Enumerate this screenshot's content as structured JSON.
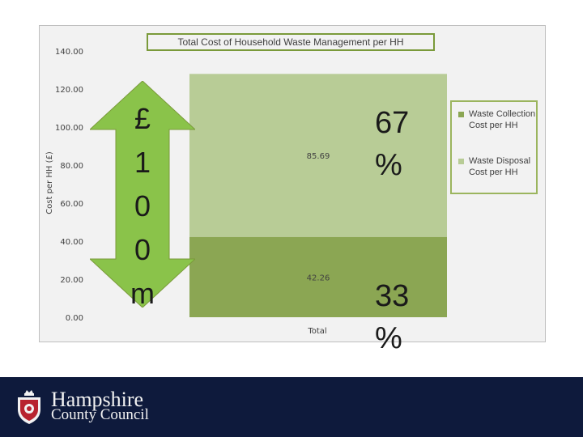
{
  "chart_data": {
    "type": "bar",
    "stacked": true,
    "title": "Total Cost of Household Waste Management per HH",
    "ylabel": "Cost per HH (£)",
    "xlabel": "",
    "categories": [
      "Total"
    ],
    "ylim": [
      0,
      140
    ],
    "yticks": [
      "0.00",
      "20.00",
      "40.00",
      "60.00",
      "80.00",
      "100.00",
      "120.00",
      "140.00"
    ],
    "series": [
      {
        "name": "Waste Collection Cost per HH",
        "values": [
          42.26
        ],
        "label": "42.26",
        "color": "#8ba653"
      },
      {
        "name": "Waste Disposal Cost per HH",
        "values": [
          85.69
        ],
        "label": "85.69",
        "color": "#b8cc96"
      }
    ],
    "legend_position": "right",
    "grid": false
  },
  "annotations": {
    "arrow_chars": [
      "£",
      "1",
      "0",
      "0",
      "m"
    ],
    "arrow_color": "#8ac34a",
    "pct_top": [
      "67",
      "%"
    ],
    "pct_bottom": [
      "33",
      "%"
    ]
  },
  "footer": {
    "org_line1": "Hampshire",
    "org_line2": "County Council",
    "background": "#0e1a3c"
  },
  "icons": {
    "logo": "county-crest-icon"
  }
}
